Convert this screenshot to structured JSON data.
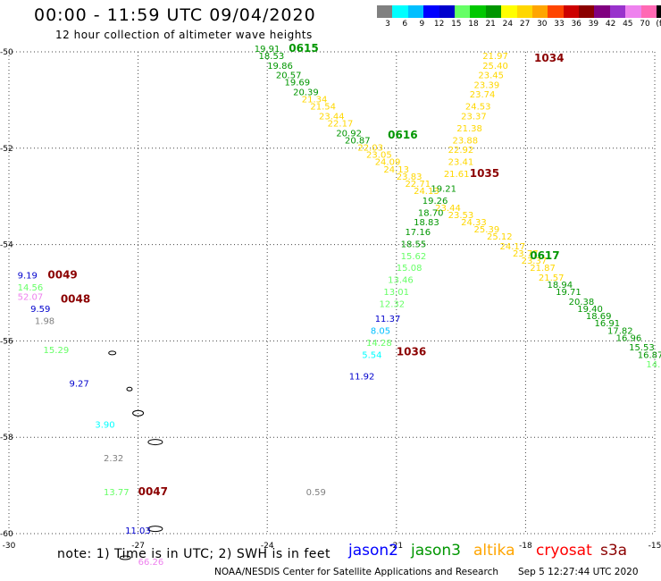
{
  "header": {
    "title": "00:00 - 11:59 UTC 09/04/2020",
    "subtitle": "12 hour collection of altimeter wave heights"
  },
  "color_scale": {
    "unit": "(ft)",
    "colors": [
      "#808080",
      "#00ffff",
      "#00bfff",
      "#0000ff",
      "#0000cd",
      "#66ff66",
      "#00c800",
      "#009600",
      "#ffff00",
      "#ffd700",
      "#ffa500",
      "#ff4500",
      "#cd0000",
      "#8b0000",
      "#800080",
      "#9932cc",
      "#ee82ee",
      "#ff69b4",
      "#000000"
    ],
    "labels": [
      "3",
      "6",
      "9",
      "12",
      "15",
      "18",
      "21",
      "24",
      "27",
      "30",
      "33",
      "36",
      "39",
      "42",
      "45",
      "70"
    ]
  },
  "map": {
    "lat_ticks": [
      "-50",
      "-52",
      "-54",
      "-56",
      "-58",
      "-60"
    ],
    "lon_ticks": [
      "-30",
      "-27",
      "-24",
      "-21",
      "-18",
      "-15"
    ]
  },
  "chart_data": {
    "type": "map",
    "lon_range": [
      -30,
      -15
    ],
    "lat_range": [
      -60,
      -50
    ],
    "pass_labels": [
      {
        "text": "0615",
        "lon": -23.5,
        "lat": -50.0,
        "color": "#009600"
      },
      {
        "text": "0616",
        "lon": -21.2,
        "lat": -51.8,
        "color": "#009600"
      },
      {
        "text": "0617",
        "lon": -17.9,
        "lat": -54.3,
        "color": "#009600"
      },
      {
        "text": "1034",
        "lon": -17.8,
        "lat": -50.2,
        "color": "#8b0000"
      },
      {
        "text": "1035",
        "lon": -19.3,
        "lat": -52.6,
        "color": "#8b0000"
      },
      {
        "text": "1036",
        "lon": -21.0,
        "lat": -56.3,
        "color": "#8b0000"
      },
      {
        "text": "0049",
        "lon": -29.1,
        "lat": -54.7,
        "color": "#8b0000"
      },
      {
        "text": "0048",
        "lon": -28.8,
        "lat": -55.2,
        "color": "#8b0000"
      },
      {
        "text": "0047",
        "lon": -27.0,
        "lat": -59.2,
        "color": "#8b0000"
      }
    ],
    "readings": [
      {
        "v": "19.91",
        "lon": -24.3,
        "lat": -50.0,
        "color": "#009600"
      },
      {
        "v": "18.53",
        "lon": -24.2,
        "lat": -50.15,
        "color": "#009600"
      },
      {
        "v": "19.86",
        "lon": -24.0,
        "lat": -50.35,
        "color": "#009600"
      },
      {
        "v": "20.57",
        "lon": -23.8,
        "lat": -50.55,
        "color": "#009600"
      },
      {
        "v": "19.69",
        "lon": -23.6,
        "lat": -50.7,
        "color": "#009600"
      },
      {
        "v": "20.39",
        "lon": -23.4,
        "lat": -50.9,
        "color": "#009600"
      },
      {
        "v": "21.34",
        "lon": -23.2,
        "lat": -51.05,
        "color": "#ffd700"
      },
      {
        "v": "21.54",
        "lon": -23.0,
        "lat": -51.2,
        "color": "#ffd700"
      },
      {
        "v": "23.44",
        "lon": -22.8,
        "lat": -51.4,
        "color": "#ffd700"
      },
      {
        "v": "22.17",
        "lon": -22.6,
        "lat": -51.55,
        "color": "#ffd700"
      },
      {
        "v": "20.92",
        "lon": -22.4,
        "lat": -51.75,
        "color": "#009600"
      },
      {
        "v": "20.87",
        "lon": -22.2,
        "lat": -51.9,
        "color": "#009600"
      },
      {
        "v": "22.03",
        "lon": -21.9,
        "lat": -52.05,
        "color": "#ffd700"
      },
      {
        "v": "23.05",
        "lon": -21.7,
        "lat": -52.2,
        "color": "#ffd700"
      },
      {
        "v": "24.09",
        "lon": -21.5,
        "lat": -52.35,
        "color": "#ffd700"
      },
      {
        "v": "24.13",
        "lon": -21.3,
        "lat": -52.5,
        "color": "#ffd700"
      },
      {
        "v": "23.83",
        "lon": -21.0,
        "lat": -52.65,
        "color": "#ffd700"
      },
      {
        "v": "22.71",
        "lon": -20.8,
        "lat": -52.8,
        "color": "#ffd700"
      },
      {
        "v": "24.13",
        "lon": -20.6,
        "lat": -52.95,
        "color": "#ffd700"
      },
      {
        "v": "19.21",
        "lon": -20.2,
        "lat": -52.9,
        "color": "#009600"
      },
      {
        "v": "19.26",
        "lon": -20.4,
        "lat": -53.15,
        "color": "#009600"
      },
      {
        "v": "23.44",
        "lon": -20.1,
        "lat": -53.3,
        "color": "#ffd700"
      },
      {
        "v": "18.70",
        "lon": -20.5,
        "lat": -53.4,
        "color": "#009600"
      },
      {
        "v": "23.53",
        "lon": -19.8,
        "lat": -53.45,
        "color": "#ffd700"
      },
      {
        "v": "18.83",
        "lon": -20.6,
        "lat": -53.6,
        "color": "#009600"
      },
      {
        "v": "24.33",
        "lon": -19.5,
        "lat": -53.6,
        "color": "#ffd700"
      },
      {
        "v": "17.16",
        "lon": -20.8,
        "lat": -53.8,
        "color": "#009600"
      },
      {
        "v": "25.39",
        "lon": -19.2,
        "lat": -53.75,
        "color": "#ffd700"
      },
      {
        "v": "18.55",
        "lon": -20.9,
        "lat": -54.05,
        "color": "#009600"
      },
      {
        "v": "25.12",
        "lon": -18.9,
        "lat": -53.9,
        "color": "#ffd700"
      },
      {
        "v": "24.17",
        "lon": -18.6,
        "lat": -54.1,
        "color": "#ffd700"
      },
      {
        "v": "15.62",
        "lon": -20.9,
        "lat": -54.3,
        "color": "#66ff66"
      },
      {
        "v": "23.77",
        "lon": -18.3,
        "lat": -54.25,
        "color": "#ffd700"
      },
      {
        "v": "15.08",
        "lon": -21.0,
        "lat": -54.55,
        "color": "#66ff66"
      },
      {
        "v": "23.37",
        "lon": -18.1,
        "lat": -54.4,
        "color": "#ffd700"
      },
      {
        "v": "21.87",
        "lon": -17.9,
        "lat": -54.55,
        "color": "#ffd700"
      },
      {
        "v": "13.46",
        "lon": -21.2,
        "lat": -54.8,
        "color": "#66ff66"
      },
      {
        "v": "21.57",
        "lon": -17.7,
        "lat": -54.75,
        "color": "#ffd700"
      },
      {
        "v": "18.94",
        "lon": -17.5,
        "lat": -54.9,
        "color": "#009600"
      },
      {
        "v": "13.01",
        "lon": -21.3,
        "lat": -55.05,
        "color": "#66ff66"
      },
      {
        "v": "19.71",
        "lon": -17.3,
        "lat": -55.05,
        "color": "#009600"
      },
      {
        "v": "12.32",
        "lon": -21.4,
        "lat": -55.3,
        "color": "#66ff66"
      },
      {
        "v": "20.38",
        "lon": -17.0,
        "lat": -55.25,
        "color": "#009600"
      },
      {
        "v": "19.40",
        "lon": -16.8,
        "lat": -55.4,
        "color": "#009600"
      },
      {
        "v": "11.37",
        "lon": -21.5,
        "lat": -55.6,
        "color": "#0000cd"
      },
      {
        "v": "18.69",
        "lon": -16.6,
        "lat": -55.55,
        "color": "#009600"
      },
      {
        "v": "16.91",
        "lon": -16.4,
        "lat": -55.7,
        "color": "#009600"
      },
      {
        "v": "8.05",
        "lon": -21.6,
        "lat": -55.85,
        "color": "#00bfff"
      },
      {
        "v": "17.82",
        "lon": -16.1,
        "lat": -55.85,
        "color": "#009600"
      },
      {
        "v": "14.28",
        "lon": -21.7,
        "lat": -56.1,
        "color": "#66ff66"
      },
      {
        "v": "16.96",
        "lon": -15.9,
        "lat": -56.0,
        "color": "#009600"
      },
      {
        "v": "15.53",
        "lon": -15.6,
        "lat": -56.2,
        "color": "#009600"
      },
      {
        "v": "16.87",
        "lon": -15.4,
        "lat": -56.35,
        "color": "#009600"
      },
      {
        "v": "5.54",
        "lon": -21.8,
        "lat": -56.35,
        "color": "#00ffff"
      },
      {
        "v": "14.",
        "lon": -15.2,
        "lat": -56.55,
        "color": "#66ff66"
      },
      {
        "v": "11.92",
        "lon": -22.1,
        "lat": -56.8,
        "color": "#0000cd"
      },
      {
        "v": "21.97",
        "lon": -19.0,
        "lat": -50.15,
        "color": "#ffd700"
      },
      {
        "v": "25.40",
        "lon": -19.0,
        "lat": -50.35,
        "color": "#ffd700"
      },
      {
        "v": "23.45",
        "lon": -19.1,
        "lat": -50.55,
        "color": "#ffd700"
      },
      {
        "v": "23.39",
        "lon": -19.2,
        "lat": -50.75,
        "color": "#ffd700"
      },
      {
        "v": "23.74",
        "lon": -19.3,
        "lat": -50.95,
        "color": "#ffd700"
      },
      {
        "v": "24.53",
        "lon": -19.4,
        "lat": -51.2,
        "color": "#ffd700"
      },
      {
        "v": "23.37",
        "lon": -19.5,
        "lat": -51.4,
        "color": "#ffd700"
      },
      {
        "v": "21.38",
        "lon": -19.6,
        "lat": -51.65,
        "color": "#ffd700"
      },
      {
        "v": "23.88",
        "lon": -19.7,
        "lat": -51.9,
        "color": "#ffd700"
      },
      {
        "v": "22.92",
        "lon": -19.8,
        "lat": -52.1,
        "color": "#ffd700"
      },
      {
        "v": "23.41",
        "lon": -19.8,
        "lat": -52.35,
        "color": "#ffd700"
      },
      {
        "v": "21.61",
        "lon": -19.9,
        "lat": -52.6,
        "color": "#ffd700"
      },
      {
        "v": "9.19",
        "lon": -29.8,
        "lat": -54.7,
        "color": "#0000cd"
      },
      {
        "v": "14.56",
        "lon": -29.8,
        "lat": -54.95,
        "color": "#66ff66"
      },
      {
        "v": "52.07",
        "lon": -29.8,
        "lat": -55.15,
        "color": "#ee82ee"
      },
      {
        "v": "9.59",
        "lon": -29.5,
        "lat": -55.4,
        "color": "#0000cd"
      },
      {
        "v": "1.98",
        "lon": -29.4,
        "lat": -55.65,
        "color": "#808080"
      },
      {
        "v": "15.29",
        "lon": -29.2,
        "lat": -56.25,
        "color": "#66ff66"
      },
      {
        "v": "9.27",
        "lon": -28.6,
        "lat": -56.95,
        "color": "#0000cd"
      },
      {
        "v": "3.90",
        "lon": -28.0,
        "lat": -57.8,
        "color": "#00ffff"
      },
      {
        "v": "2.32",
        "lon": -27.8,
        "lat": -58.5,
        "color": "#808080"
      },
      {
        "v": "13.77",
        "lon": -27.8,
        "lat": -59.2,
        "color": "#66ff66"
      },
      {
        "v": "0.59",
        "lon": -23.1,
        "lat": -59.2,
        "color": "#808080"
      },
      {
        "v": "11.03",
        "lon": -27.3,
        "lat": -60.0,
        "color": "#0000cd"
      },
      {
        "v": "66.26",
        "lon": -27.0,
        "lat": -60.65,
        "color": "#ee82ee"
      }
    ]
  },
  "footer": {
    "note": "note: 1) Time is in UTC; 2) SWH is in feet",
    "satellites": [
      {
        "name": "jason2",
        "color": "#0000ff"
      },
      {
        "name": "jason3",
        "color": "#009600"
      },
      {
        "name": "altika",
        "color": "#ffa500"
      },
      {
        "name": "cryosat",
        "color": "#ff0000"
      },
      {
        "name": "s3a",
        "color": "#8b0000"
      }
    ],
    "credit": "NOAA/NESDIS Center for Satellite Applications and Research",
    "timestamp": "Sep  5 12:27:44 UTC 2020"
  }
}
